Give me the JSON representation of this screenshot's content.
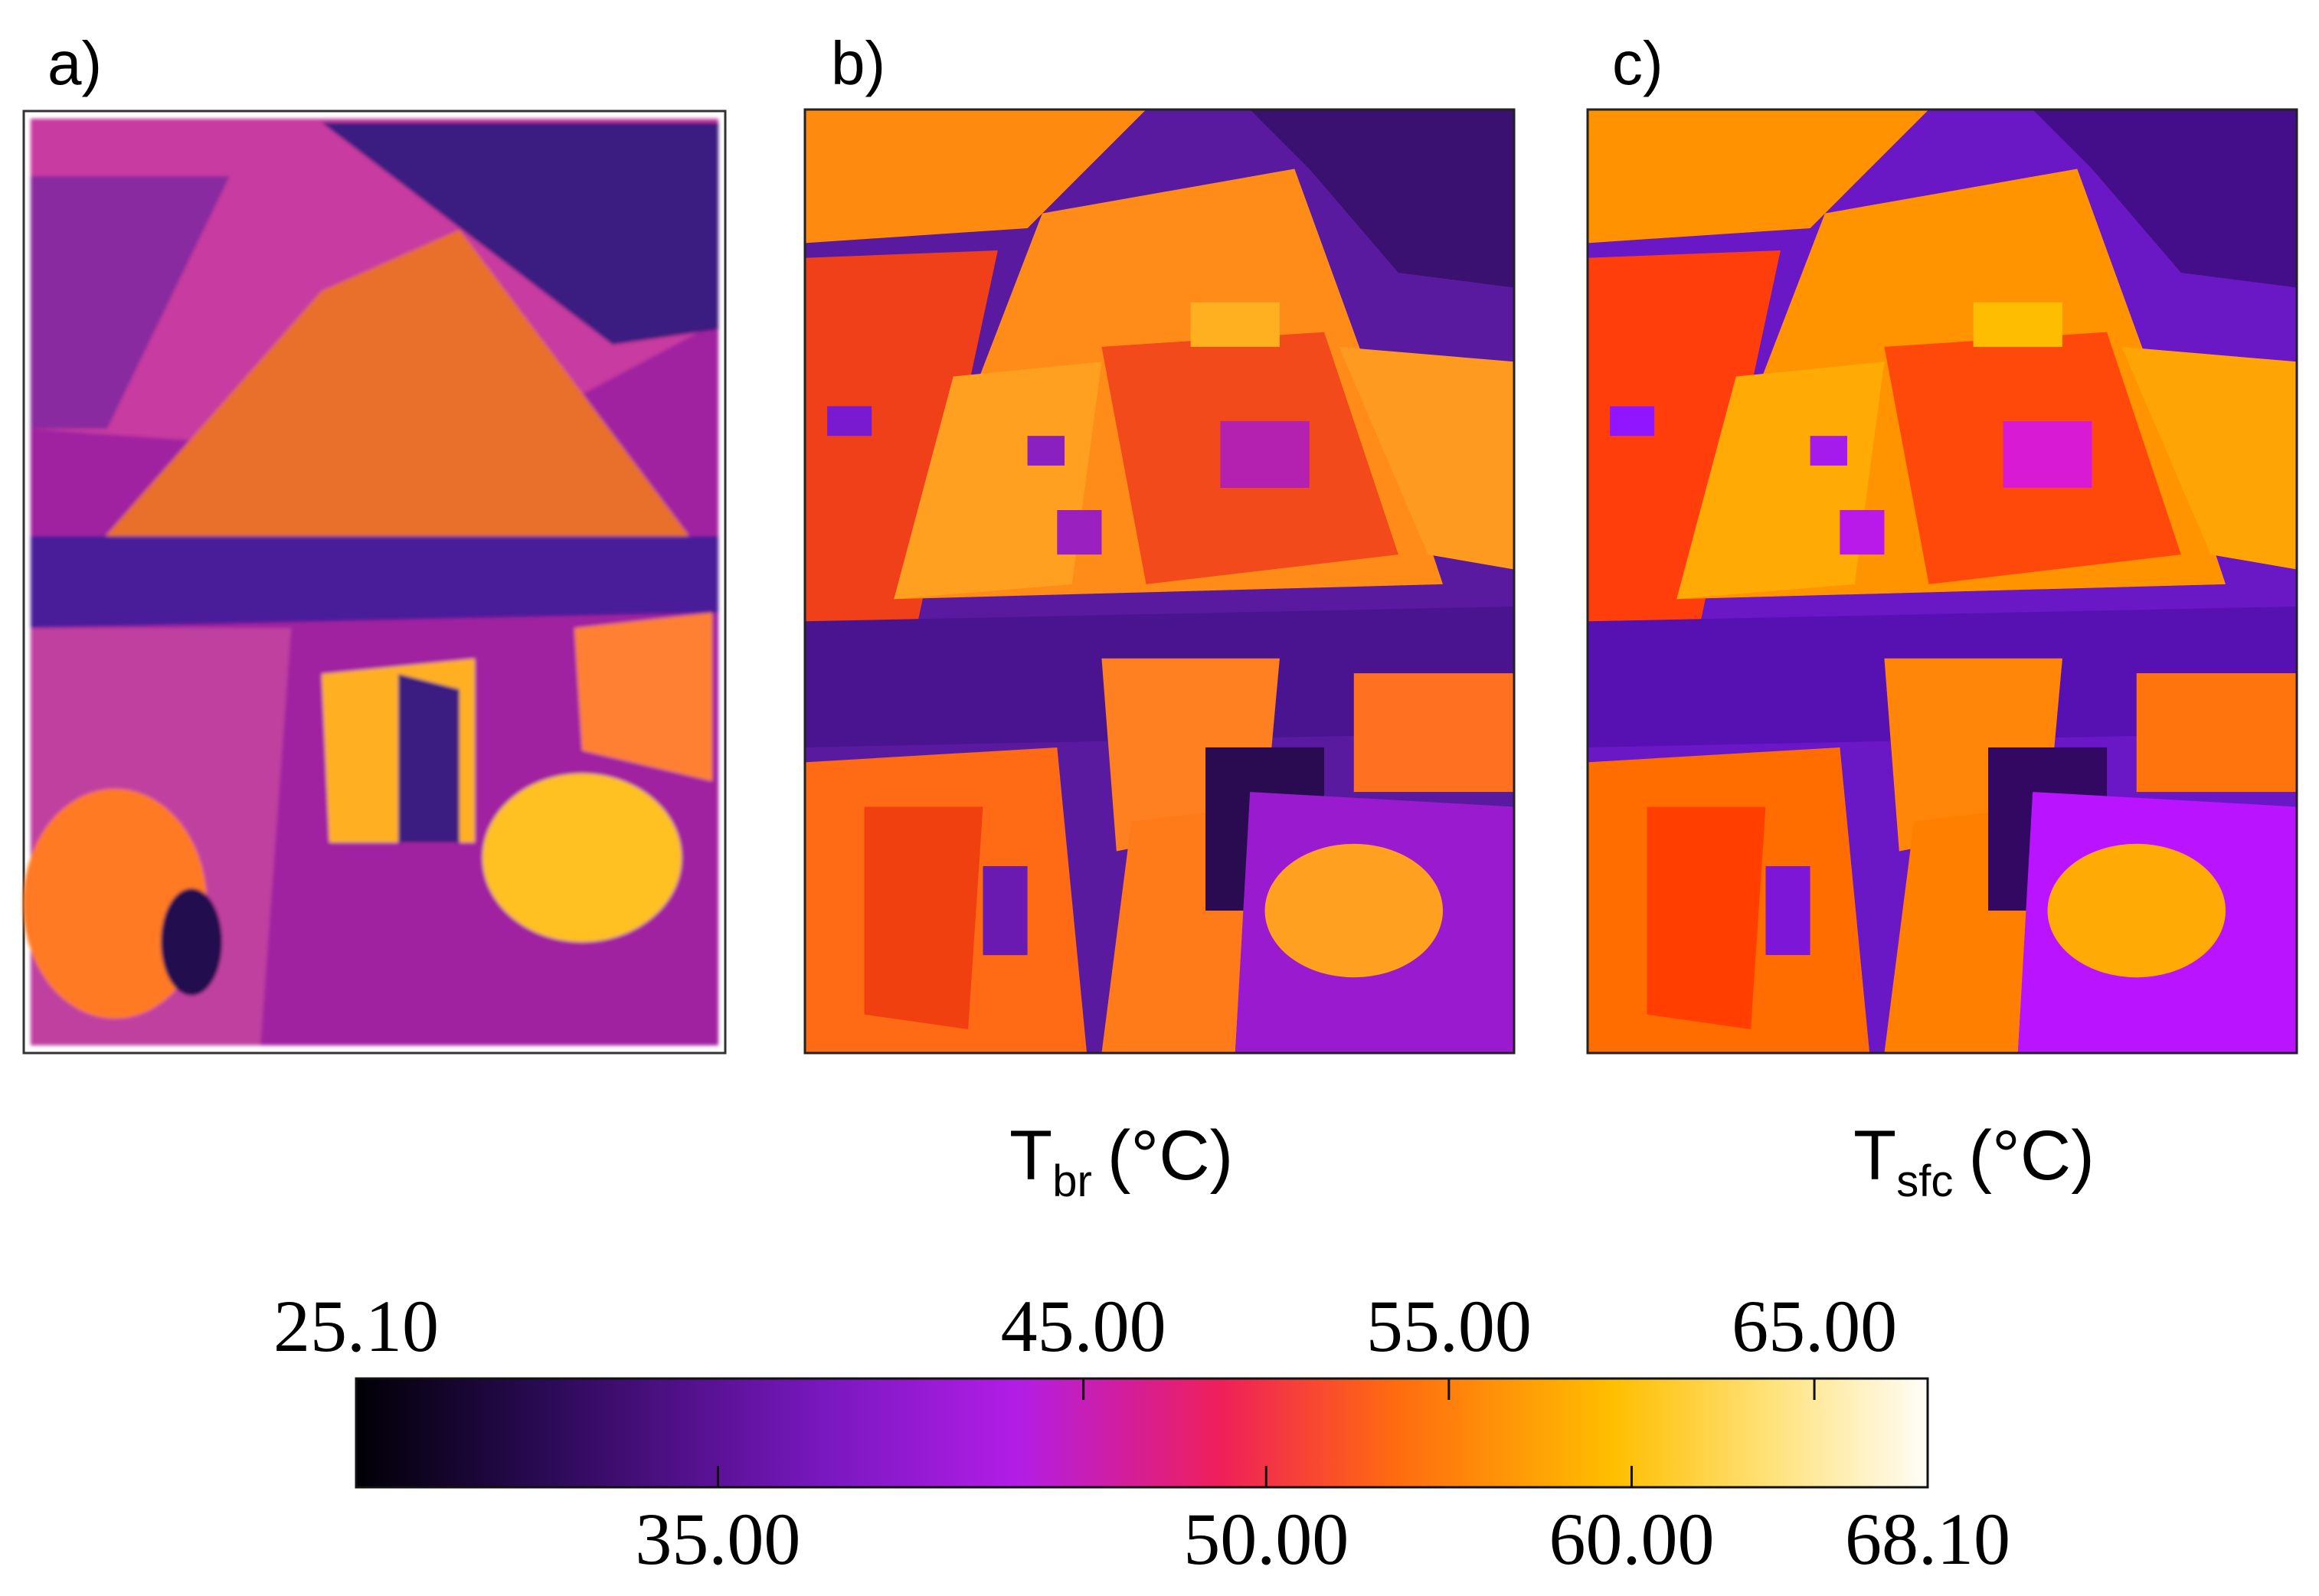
{
  "panels": [
    {
      "label": "a)"
    },
    {
      "label": "b)",
      "caption": {
        "symbol": "T",
        "subscript": "br",
        "unit": "(°C)"
      }
    },
    {
      "label": "c)",
      "caption": {
        "symbol": "T",
        "subscript": "sfc",
        "unit": "(°C)"
      }
    }
  ],
  "colorbar": {
    "ticks": [
      {
        "value": 25.1,
        "label": "25.10"
      },
      {
        "value": 35,
        "label": "35.00"
      },
      {
        "value": 45,
        "label": "45.00"
      },
      {
        "value": 50,
        "label": "50.00"
      },
      {
        "value": 55,
        "label": "55.00"
      },
      {
        "value": 60,
        "label": "60.00"
      },
      {
        "value": 65,
        "label": "65.00"
      },
      {
        "value": 68.1,
        "label": "68.10"
      }
    ]
  }
}
